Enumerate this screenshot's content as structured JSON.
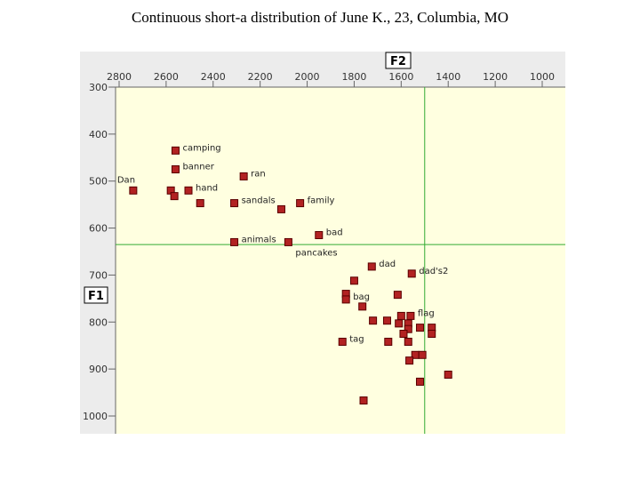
{
  "title": "Continuous short-a distribution of June K., 23, Columbia, MO",
  "chart_data": {
    "type": "scatter",
    "xlabel": "F2",
    "ylabel": "F1",
    "x_reversed": true,
    "y_reversed": true,
    "xlim": [
      2800,
      1000
    ],
    "ylim": [
      300,
      1000
    ],
    "x_ticks": [
      2800,
      2600,
      2400,
      2200,
      2000,
      1800,
      1600,
      1400,
      1200,
      1000
    ],
    "y_ticks": [
      300,
      400,
      500,
      600,
      700,
      800,
      900,
      1000
    ],
    "reference_lines": {
      "x": 1500,
      "y": 635
    },
    "colors": {
      "plot_background": "#ffffe0",
      "marker_fill": "#b22222",
      "marker_stroke": "#5a0000",
      "reference_line": "#33aa33",
      "axis": "#666666"
    },
    "points": [
      {
        "x": 2740,
        "y": 520,
        "label": "Dan"
      },
      {
        "x": 2560,
        "y": 435,
        "label": "camping"
      },
      {
        "x": 2560,
        "y": 475,
        "label": "banner"
      },
      {
        "x": 2505,
        "y": 520,
        "label": "hand"
      },
      {
        "x": 2580,
        "y": 520,
        "label": ""
      },
      {
        "x": 2565,
        "y": 532,
        "label": ""
      },
      {
        "x": 2455,
        "y": 547,
        "label": ""
      },
      {
        "x": 2310,
        "y": 547,
        "label": "sandals"
      },
      {
        "x": 2270,
        "y": 490,
        "label": "ran"
      },
      {
        "x": 2030,
        "y": 547,
        "label": "family"
      },
      {
        "x": 2110,
        "y": 560,
        "label": ""
      },
      {
        "x": 2310,
        "y": 630,
        "label": "animals"
      },
      {
        "x": 2080,
        "y": 630,
        "label": "pancakes"
      },
      {
        "x": 1950,
        "y": 615,
        "label": "bad"
      },
      {
        "x": 1725,
        "y": 682,
        "label": "dad"
      },
      {
        "x": 1555,
        "y": 697,
        "label": "dad's2"
      },
      {
        "x": 1800,
        "y": 712,
        "label": ""
      },
      {
        "x": 1835,
        "y": 740,
        "label": ""
      },
      {
        "x": 1835,
        "y": 752,
        "label": "bag"
      },
      {
        "x": 1765,
        "y": 767,
        "label": ""
      },
      {
        "x": 1615,
        "y": 742,
        "label": ""
      },
      {
        "x": 1720,
        "y": 797,
        "label": ""
      },
      {
        "x": 1660,
        "y": 797,
        "label": ""
      },
      {
        "x": 1600,
        "y": 787,
        "label": ""
      },
      {
        "x": 1560,
        "y": 787,
        "label": "flag"
      },
      {
        "x": 1610,
        "y": 803,
        "label": ""
      },
      {
        "x": 1570,
        "y": 803,
        "label": ""
      },
      {
        "x": 1570,
        "y": 815,
        "label": ""
      },
      {
        "x": 1520,
        "y": 812,
        "label": ""
      },
      {
        "x": 1470,
        "y": 812,
        "label": ""
      },
      {
        "x": 1470,
        "y": 825,
        "label": ""
      },
      {
        "x": 1590,
        "y": 825,
        "label": ""
      },
      {
        "x": 1570,
        "y": 842,
        "label": ""
      },
      {
        "x": 1850,
        "y": 842,
        "label": "tag"
      },
      {
        "x": 1655,
        "y": 842,
        "label": ""
      },
      {
        "x": 1540,
        "y": 870,
        "label": ""
      },
      {
        "x": 1510,
        "y": 870,
        "label": ""
      },
      {
        "x": 1565,
        "y": 882,
        "label": ""
      },
      {
        "x": 1400,
        "y": 912,
        "label": ""
      },
      {
        "x": 1520,
        "y": 927,
        "label": ""
      },
      {
        "x": 1760,
        "y": 967,
        "label": ""
      }
    ]
  }
}
